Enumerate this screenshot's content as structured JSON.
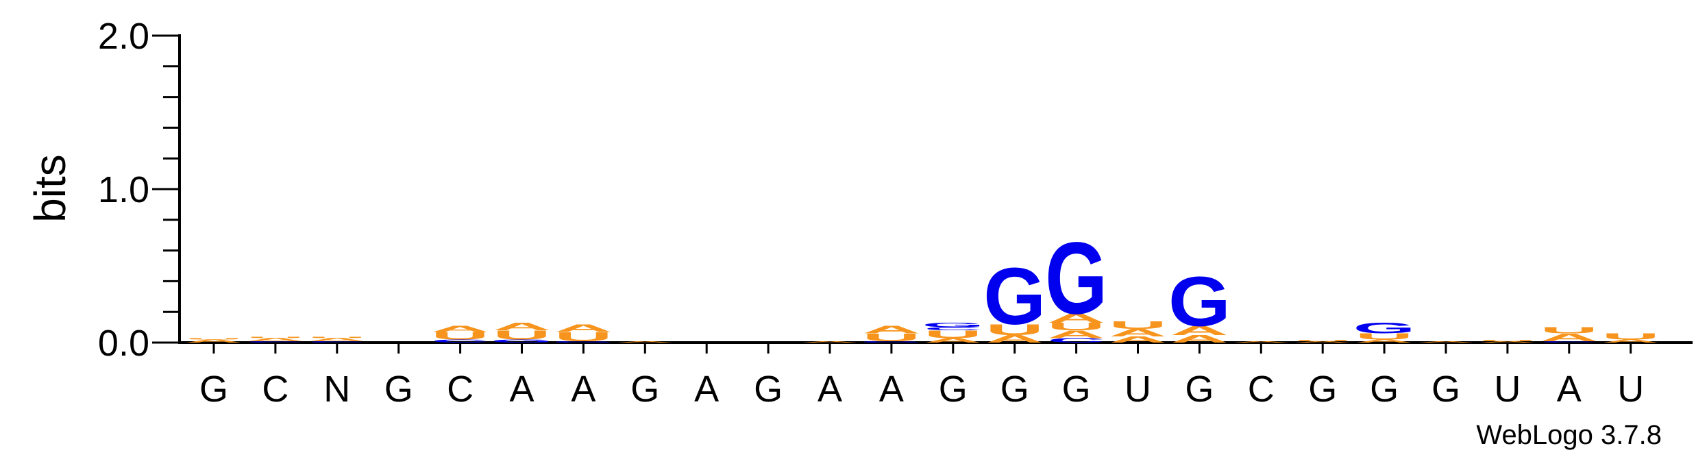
{
  "chart_data": {
    "type": "sequence-logo",
    "ylabel": "bits",
    "ylim": [
      0,
      2.0
    ],
    "y_ticks": [
      "0.0",
      "1.0",
      "2.0"
    ],
    "y_tick_values": [
      0,
      1,
      2
    ],
    "colors": {
      "G": "#0000ee",
      "A": "#f7941d",
      "U": "#f7941d",
      "C": "#0000ee"
    },
    "positions": [
      {
        "label": "G",
        "letters": [
          {
            "base": "A",
            "bits": 0.02
          },
          {
            "base": "U",
            "bits": 0.01
          }
        ]
      },
      {
        "label": "C",
        "letters": [
          {
            "base": "C",
            "bits": 0.01
          },
          {
            "base": "A",
            "bits": 0.02
          },
          {
            "base": "U",
            "bits": 0.01
          }
        ]
      },
      {
        "label": "N",
        "letters": [
          {
            "base": "C",
            "bits": 0.01
          },
          {
            "base": "A",
            "bits": 0.02
          },
          {
            "base": "U",
            "bits": 0.01
          }
        ]
      },
      {
        "label": "G",
        "letters": []
      },
      {
        "label": "C",
        "letters": [
          {
            "base": "C",
            "bits": 0.02
          },
          {
            "base": "U",
            "bits": 0.05
          },
          {
            "base": "A",
            "bits": 0.04
          }
        ]
      },
      {
        "label": "A",
        "letters": [
          {
            "base": "G",
            "bits": 0.02
          },
          {
            "base": "U",
            "bits": 0.06
          },
          {
            "base": "A",
            "bits": 0.05
          }
        ]
      },
      {
        "label": "A",
        "letters": [
          {
            "base": "G",
            "bits": 0.01
          },
          {
            "base": "U",
            "bits": 0.06
          },
          {
            "base": "A",
            "bits": 0.05
          }
        ]
      },
      {
        "label": "G",
        "letters": [
          {
            "base": "A",
            "bits": 0.01
          }
        ]
      },
      {
        "label": "A",
        "letters": []
      },
      {
        "label": "G",
        "letters": []
      },
      {
        "label": "A",
        "letters": [
          {
            "base": "A",
            "bits": 0.01
          }
        ]
      },
      {
        "label": "A",
        "letters": [
          {
            "base": "G",
            "bits": 0.01
          },
          {
            "base": "U",
            "bits": 0.05
          },
          {
            "base": "A",
            "bits": 0.05
          }
        ]
      },
      {
        "label": "G",
        "letters": [
          {
            "base": "A",
            "bits": 0.03
          },
          {
            "base": "U",
            "bits": 0.05
          },
          {
            "base": "C",
            "bits": 0.02
          },
          {
            "base": "G",
            "bits": 0.03
          }
        ]
      },
      {
        "label": "G",
        "letters": [
          {
            "base": "A",
            "bits": 0.05
          },
          {
            "base": "U",
            "bits": 0.07
          },
          {
            "base": "G",
            "bits": 0.38
          }
        ]
      },
      {
        "label": "G",
        "letters": [
          {
            "base": "C",
            "bits": 0.03
          },
          {
            "base": "A",
            "bits": 0.05
          },
          {
            "base": "U",
            "bits": 0.05
          },
          {
            "base": "A",
            "bits": 0.06
          },
          {
            "base": "G",
            "bits": 0.48
          }
        ]
      },
      {
        "label": "U",
        "letters": [
          {
            "base": "A",
            "bits": 0.04
          },
          {
            "base": "A",
            "bits": 0.05
          },
          {
            "base": "U",
            "bits": 0.05
          }
        ]
      },
      {
        "label": "G",
        "letters": [
          {
            "base": "A",
            "bits": 0.05
          },
          {
            "base": "A",
            "bits": 0.06
          },
          {
            "base": "G",
            "bits": 0.33
          }
        ]
      },
      {
        "label": "C",
        "letters": [
          {
            "base": "A",
            "bits": 0.01
          }
        ]
      },
      {
        "label": "G",
        "letters": [
          {
            "base": "A",
            "bits": 0.01
          },
          {
            "base": "U",
            "bits": 0.01
          }
        ]
      },
      {
        "label": "G",
        "letters": [
          {
            "base": "A",
            "bits": 0.02
          },
          {
            "base": "U",
            "bits": 0.04
          },
          {
            "base": "G",
            "bits": 0.07
          }
        ]
      },
      {
        "label": "G",
        "letters": [
          {
            "base": "A",
            "bits": 0.01
          }
        ]
      },
      {
        "label": "U",
        "letters": [
          {
            "base": "A",
            "bits": 0.01
          },
          {
            "base": "U",
            "bits": 0.01
          }
        ]
      },
      {
        "label": "A",
        "letters": [
          {
            "base": "C",
            "bits": 0.01
          },
          {
            "base": "A",
            "bits": 0.05
          },
          {
            "base": "U",
            "bits": 0.04
          }
        ]
      },
      {
        "label": "U",
        "letters": [
          {
            "base": "A",
            "bits": 0.02
          },
          {
            "base": "U",
            "bits": 0.04
          }
        ]
      }
    ]
  },
  "credit": "WebLogo 3.7.8"
}
